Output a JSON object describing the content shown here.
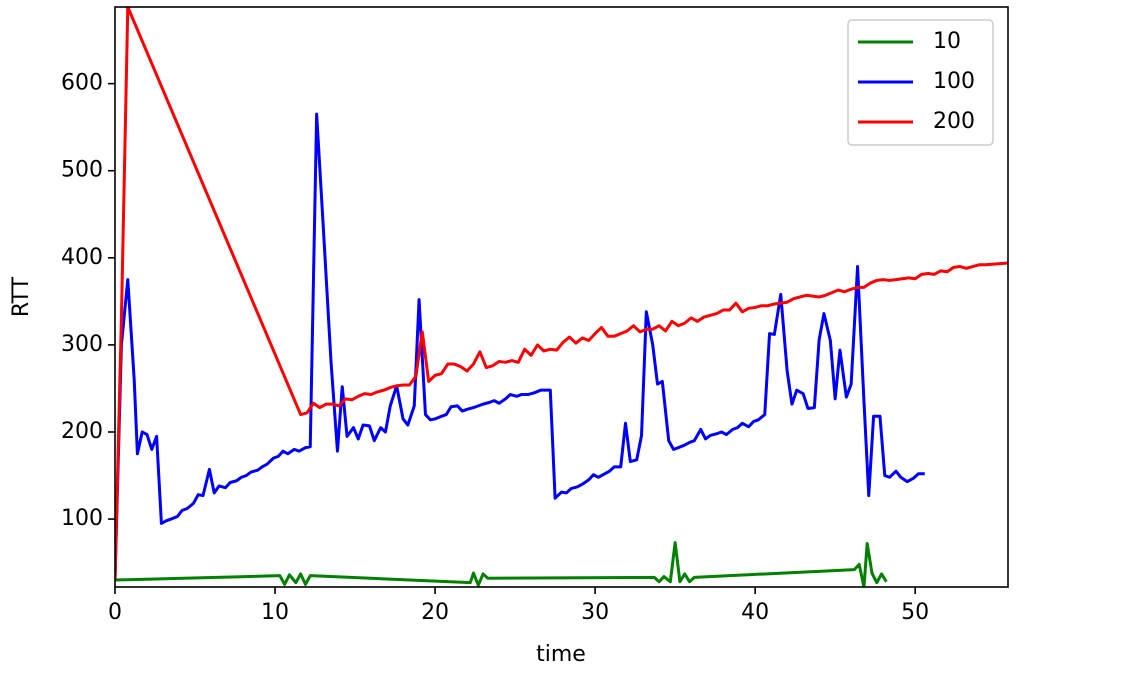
{
  "chart_data": {
    "type": "line",
    "xlabel": "time",
    "ylabel": "RTT",
    "xlim": [
      0,
      55.8
    ],
    "ylim": [
      22,
      688
    ],
    "xticks": [
      0,
      10,
      20,
      30,
      40,
      50
    ],
    "yticks": [
      100,
      200,
      300,
      400,
      500,
      600
    ],
    "grid": false,
    "legend": "upper right",
    "series": [
      {
        "name": "10",
        "color": "#008000",
        "x": [
          0,
          10.3,
          10.6,
          10.9,
          11.3,
          11.6,
          11.9,
          12.2,
          22.2,
          22.4,
          22.7,
          23,
          23.3,
          33.7,
          34,
          34.3,
          34.7,
          35,
          35.3,
          35.6,
          35.9,
          36.2,
          46.2,
          46.5,
          46.8,
          47,
          47.3,
          47.6,
          47.9,
          48.2
        ],
        "values": [
          30,
          35,
          25,
          36,
          27,
          37,
          25,
          35,
          27,
          38,
          24,
          37,
          32,
          33,
          28,
          34,
          28,
          73,
          28,
          37,
          28,
          33,
          42,
          48,
          22,
          72,
          38,
          27,
          37,
          28
        ]
      },
      {
        "name": "100",
        "color": "#0000ff",
        "x": [
          0,
          0.4,
          0.8,
          1.2,
          1.4,
          1.7,
          2,
          2.3,
          2.6,
          2.9,
          3.2,
          3.5,
          3.9,
          4.2,
          4.5,
          4.9,
          5.2,
          5.5,
          5.9,
          6.2,
          6.5,
          6.9,
          7.2,
          7.6,
          7.9,
          8.2,
          8.5,
          8.9,
          9.2,
          9.5,
          9.9,
          10.2,
          10.5,
          10.8,
          11.2,
          11.5,
          11.9,
          12.2,
          12.6,
          13,
          13.5,
          13.9,
          14.2,
          14.5,
          14.9,
          15.2,
          15.5,
          15.9,
          16.2,
          16.6,
          16.9,
          17.2,
          17.6,
          18,
          18.3,
          18.7,
          19,
          19.4,
          19.7,
          20,
          20.4,
          20.7,
          21,
          21.4,
          21.7,
          22,
          22.4,
          22.7,
          23,
          23.4,
          23.7,
          24,
          24.4,
          24.7,
          25.1,
          25.4,
          25.8,
          26.2,
          26.6,
          26.9,
          27.2,
          27.5,
          27.9,
          28.2,
          28.5,
          28.9,
          29.2,
          29.6,
          29.9,
          30.2,
          30.6,
          30.9,
          31.2,
          31.6,
          31.9,
          32.2,
          32.6,
          32.9,
          33.2,
          33.6,
          33.9,
          34.2,
          34.6,
          34.9,
          35.2,
          35.6,
          35.9,
          36.2,
          36.6,
          36.9,
          37.2,
          37.6,
          37.9,
          38.2,
          38.6,
          38.9,
          39.2,
          39.6,
          39.9,
          40.2,
          40.6,
          40.9,
          41.2,
          41.6,
          42,
          42.3,
          42.6,
          43,
          43.3,
          43.7,
          44,
          44.3,
          44.7,
          45,
          45.3,
          45.7,
          46,
          46.4,
          46.8,
          47.1,
          47.4,
          47.8,
          48.1,
          48.4,
          48.8,
          49.1,
          49.5,
          49.9,
          50.2,
          50.6
        ],
        "values": [
          30,
          300,
          375,
          260,
          175,
          200,
          197,
          180,
          195,
          95,
          98,
          100,
          103,
          110,
          112,
          118,
          128,
          127,
          157,
          130,
          138,
          136,
          142,
          144,
          148,
          150,
          154,
          156,
          160,
          163,
          170,
          172,
          178,
          175,
          180,
          178,
          182,
          183,
          565,
          440,
          280,
          178,
          252,
          195,
          205,
          192,
          208,
          207,
          190,
          205,
          200,
          230,
          253,
          215,
          208,
          230,
          352,
          220,
          214,
          215,
          218,
          220,
          229,
          230,
          224,
          226,
          228,
          230,
          232,
          234,
          236,
          233,
          238,
          243,
          241,
          243,
          243,
          245,
          248,
          248,
          248,
          124,
          131,
          130,
          135,
          137,
          140,
          145,
          151,
          148,
          152,
          155,
          160,
          160,
          210,
          166,
          168,
          196,
          338,
          300,
          255,
          258,
          190,
          180,
          182,
          185,
          188,
          190,
          203,
          192,
          196,
          198,
          200,
          197,
          203,
          205,
          210,
          206,
          212,
          214,
          220,
          313,
          312,
          358,
          270,
          232,
          248,
          244,
          227,
          228,
          306,
          336,
          305,
          238,
          294,
          240,
          255,
          390,
          235,
          127,
          218,
          218,
          150,
          148,
          155,
          148,
          143,
          147,
          152,
          152
        ]
      },
      {
        "name": "200",
        "color": "#ff0000",
        "x": [
          0,
          0.4,
          0.8,
          11.6,
          12,
          12.4,
          12.8,
          13.2,
          13.6,
          14,
          14.4,
          14.8,
          15.2,
          15.6,
          16,
          16.4,
          16.8,
          17.2,
          17.6,
          18,
          18.4,
          18.8,
          19.2,
          19.6,
          20,
          20.4,
          20.8,
          21.2,
          21.6,
          22,
          22.4,
          22.8,
          23.2,
          23.6,
          24,
          24.4,
          24.8,
          25.2,
          25.6,
          26,
          26.4,
          26.8,
          27.2,
          27.6,
          28,
          28.4,
          28.8,
          29.2,
          29.6,
          30,
          30.4,
          30.8,
          31.2,
          31.6,
          32,
          32.4,
          32.8,
          33.2,
          33.6,
          34,
          34.4,
          34.8,
          35.2,
          35.6,
          36,
          36.4,
          36.8,
          37.2,
          37.6,
          38,
          38.4,
          38.8,
          39.2,
          39.6,
          40,
          40.4,
          40.8,
          41.2,
          41.6,
          42,
          42.4,
          42.8,
          43.2,
          43.6,
          44,
          44.4,
          44.8,
          45.2,
          45.6,
          46,
          46.4,
          46.8,
          47.2,
          47.6,
          48,
          48.4,
          48.8,
          49.2,
          49.6,
          50,
          50.4,
          50.8,
          51.2,
          51.6,
          52,
          52.4,
          52.8,
          53.2,
          53.6,
          54,
          54.4,
          55.8
        ],
        "values": [
          30,
          330,
          688,
          220,
          222,
          233,
          228,
          232,
          232,
          230,
          238,
          237,
          241,
          244,
          243,
          246,
          248,
          251,
          253,
          254,
          254,
          264,
          315,
          258,
          265,
          267,
          278,
          278,
          275,
          270,
          278,
          292,
          274,
          276,
          281,
          280,
          282,
          280,
          295,
          288,
          300,
          293,
          295,
          294,
          303,
          309,
          302,
          308,
          305,
          313,
          320,
          310,
          310,
          313,
          316,
          322,
          315,
          318,
          318,
          322,
          316,
          327,
          322,
          325,
          331,
          327,
          332,
          334,
          336,
          340,
          340,
          348,
          338,
          342,
          343,
          345,
          345,
          347,
          348,
          349,
          353,
          355,
          357,
          356,
          355,
          357,
          360,
          363,
          361,
          364,
          366,
          366,
          371,
          374,
          375,
          374,
          375,
          376,
          377,
          376,
          381,
          382,
          381,
          385,
          384,
          389,
          390,
          388,
          390,
          392,
          392,
          394
        ]
      }
    ]
  }
}
